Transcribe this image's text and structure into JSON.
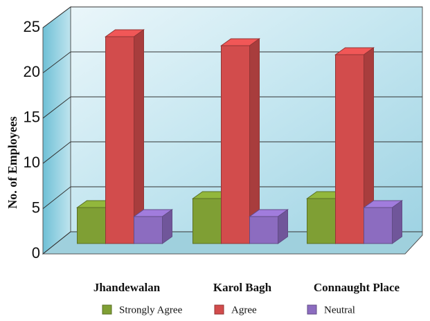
{
  "chart_data": {
    "type": "bar3d",
    "y_axis_label": "No. of Employees",
    "categories": [
      "Jhandewalan",
      "Karol Bagh",
      "Connaught Place"
    ],
    "series": [
      {
        "name": "Strongly Agree",
        "color": "#7f9f34",
        "values": [
          4,
          5,
          5
        ]
      },
      {
        "name": "Agree",
        "color": "#d24c4c",
        "values": [
          23,
          22,
          21
        ]
      },
      {
        "name": "Neutral",
        "color": "#8c6cc0",
        "values": [
          3,
          3,
          4
        ]
      }
    ],
    "ylim": [
      0,
      25
    ],
    "yticks": [
      0,
      5,
      10,
      15,
      20,
      25
    ],
    "grid": true,
    "legend": "bottom"
  }
}
